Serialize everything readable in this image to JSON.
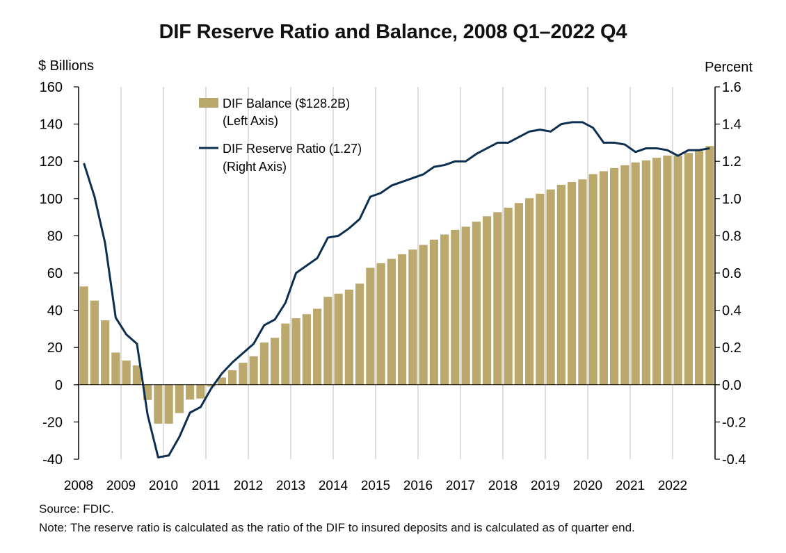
{
  "chart_data": {
    "type": "bar+line",
    "title": "DIF Reserve Ratio and Balance, 2008 Q1–2022 Q4",
    "left_axis_label": "$ Billions",
    "right_axis_label": "Percent",
    "left_ylim": [
      -40,
      160
    ],
    "right_ylim": [
      -0.4,
      1.6
    ],
    "left_ticks": [
      "160",
      "140",
      "120",
      "100",
      "80",
      "60",
      "40",
      "20",
      "0",
      "-20",
      "-40"
    ],
    "right_ticks": [
      "1.6",
      "1.4",
      "1.2",
      "1.0",
      "0.8",
      "0.6",
      "0.4",
      "0.2",
      "0.0",
      "-0.2",
      "-0.4"
    ],
    "x_tick_labels": [
      "2008",
      "2009",
      "2010",
      "2011",
      "2012",
      "2013",
      "2014",
      "2015",
      "2016",
      "2017",
      "2018",
      "2019",
      "2020",
      "2021",
      "2022"
    ],
    "grid": "vertical year lines",
    "legend_placement": "top-left",
    "series": [
      {
        "name": "DIF Balance ($128.2B)",
        "name_line2": "(Left Axis)",
        "type": "bar",
        "axis": "left",
        "color": "#bba86c",
        "values": [
          52.8,
          45.2,
          34.6,
          17.3,
          13.0,
          10.4,
          -8.2,
          -20.9,
          -20.9,
          -15.2,
          -8.0,
          -7.4,
          -1.0,
          3.9,
          7.8,
          11.8,
          15.3,
          22.7,
          25.2,
          32.9,
          35.7,
          37.9,
          40.8,
          47.2,
          48.9,
          51.1,
          54.3,
          62.8,
          65.3,
          67.6,
          70.1,
          72.6,
          75.1,
          77.9,
          80.7,
          83.2,
          84.9,
          87.6,
          90.5,
          92.7,
          95.1,
          97.6,
          100.2,
          102.6,
          104.9,
          107.4,
          108.9,
          110.3,
          113.1,
          114.7,
          116.4,
          117.9,
          119.4,
          120.5,
          121.9,
          123.1,
          123.1,
          124.5,
          125.5,
          128.2
        ]
      },
      {
        "name": "DIF Reserve Ratio (1.27)",
        "name_line2": "(Right Axis)",
        "type": "line",
        "axis": "right",
        "color": "#0d2f4f",
        "values": [
          1.19,
          1.01,
          0.76,
          0.36,
          0.27,
          0.22,
          -0.16,
          -0.39,
          -0.38,
          -0.28,
          -0.15,
          -0.12,
          -0.02,
          0.06,
          0.12,
          0.17,
          0.22,
          0.32,
          0.35,
          0.44,
          0.6,
          0.64,
          0.68,
          0.79,
          0.8,
          0.84,
          0.89,
          1.01,
          1.03,
          1.07,
          1.09,
          1.11,
          1.13,
          1.17,
          1.18,
          1.2,
          1.2,
          1.24,
          1.27,
          1.3,
          1.3,
          1.33,
          1.36,
          1.37,
          1.36,
          1.4,
          1.41,
          1.41,
          1.38,
          1.3,
          1.3,
          1.29,
          1.25,
          1.27,
          1.27,
          1.26,
          1.23,
          1.26,
          1.26,
          1.27
        ]
      }
    ]
  },
  "footer": {
    "source": "Source: FDIC.",
    "note": "Note: The reserve ratio is calculated as the ratio of the DIF to insured deposits and is calculated as of quarter end."
  }
}
